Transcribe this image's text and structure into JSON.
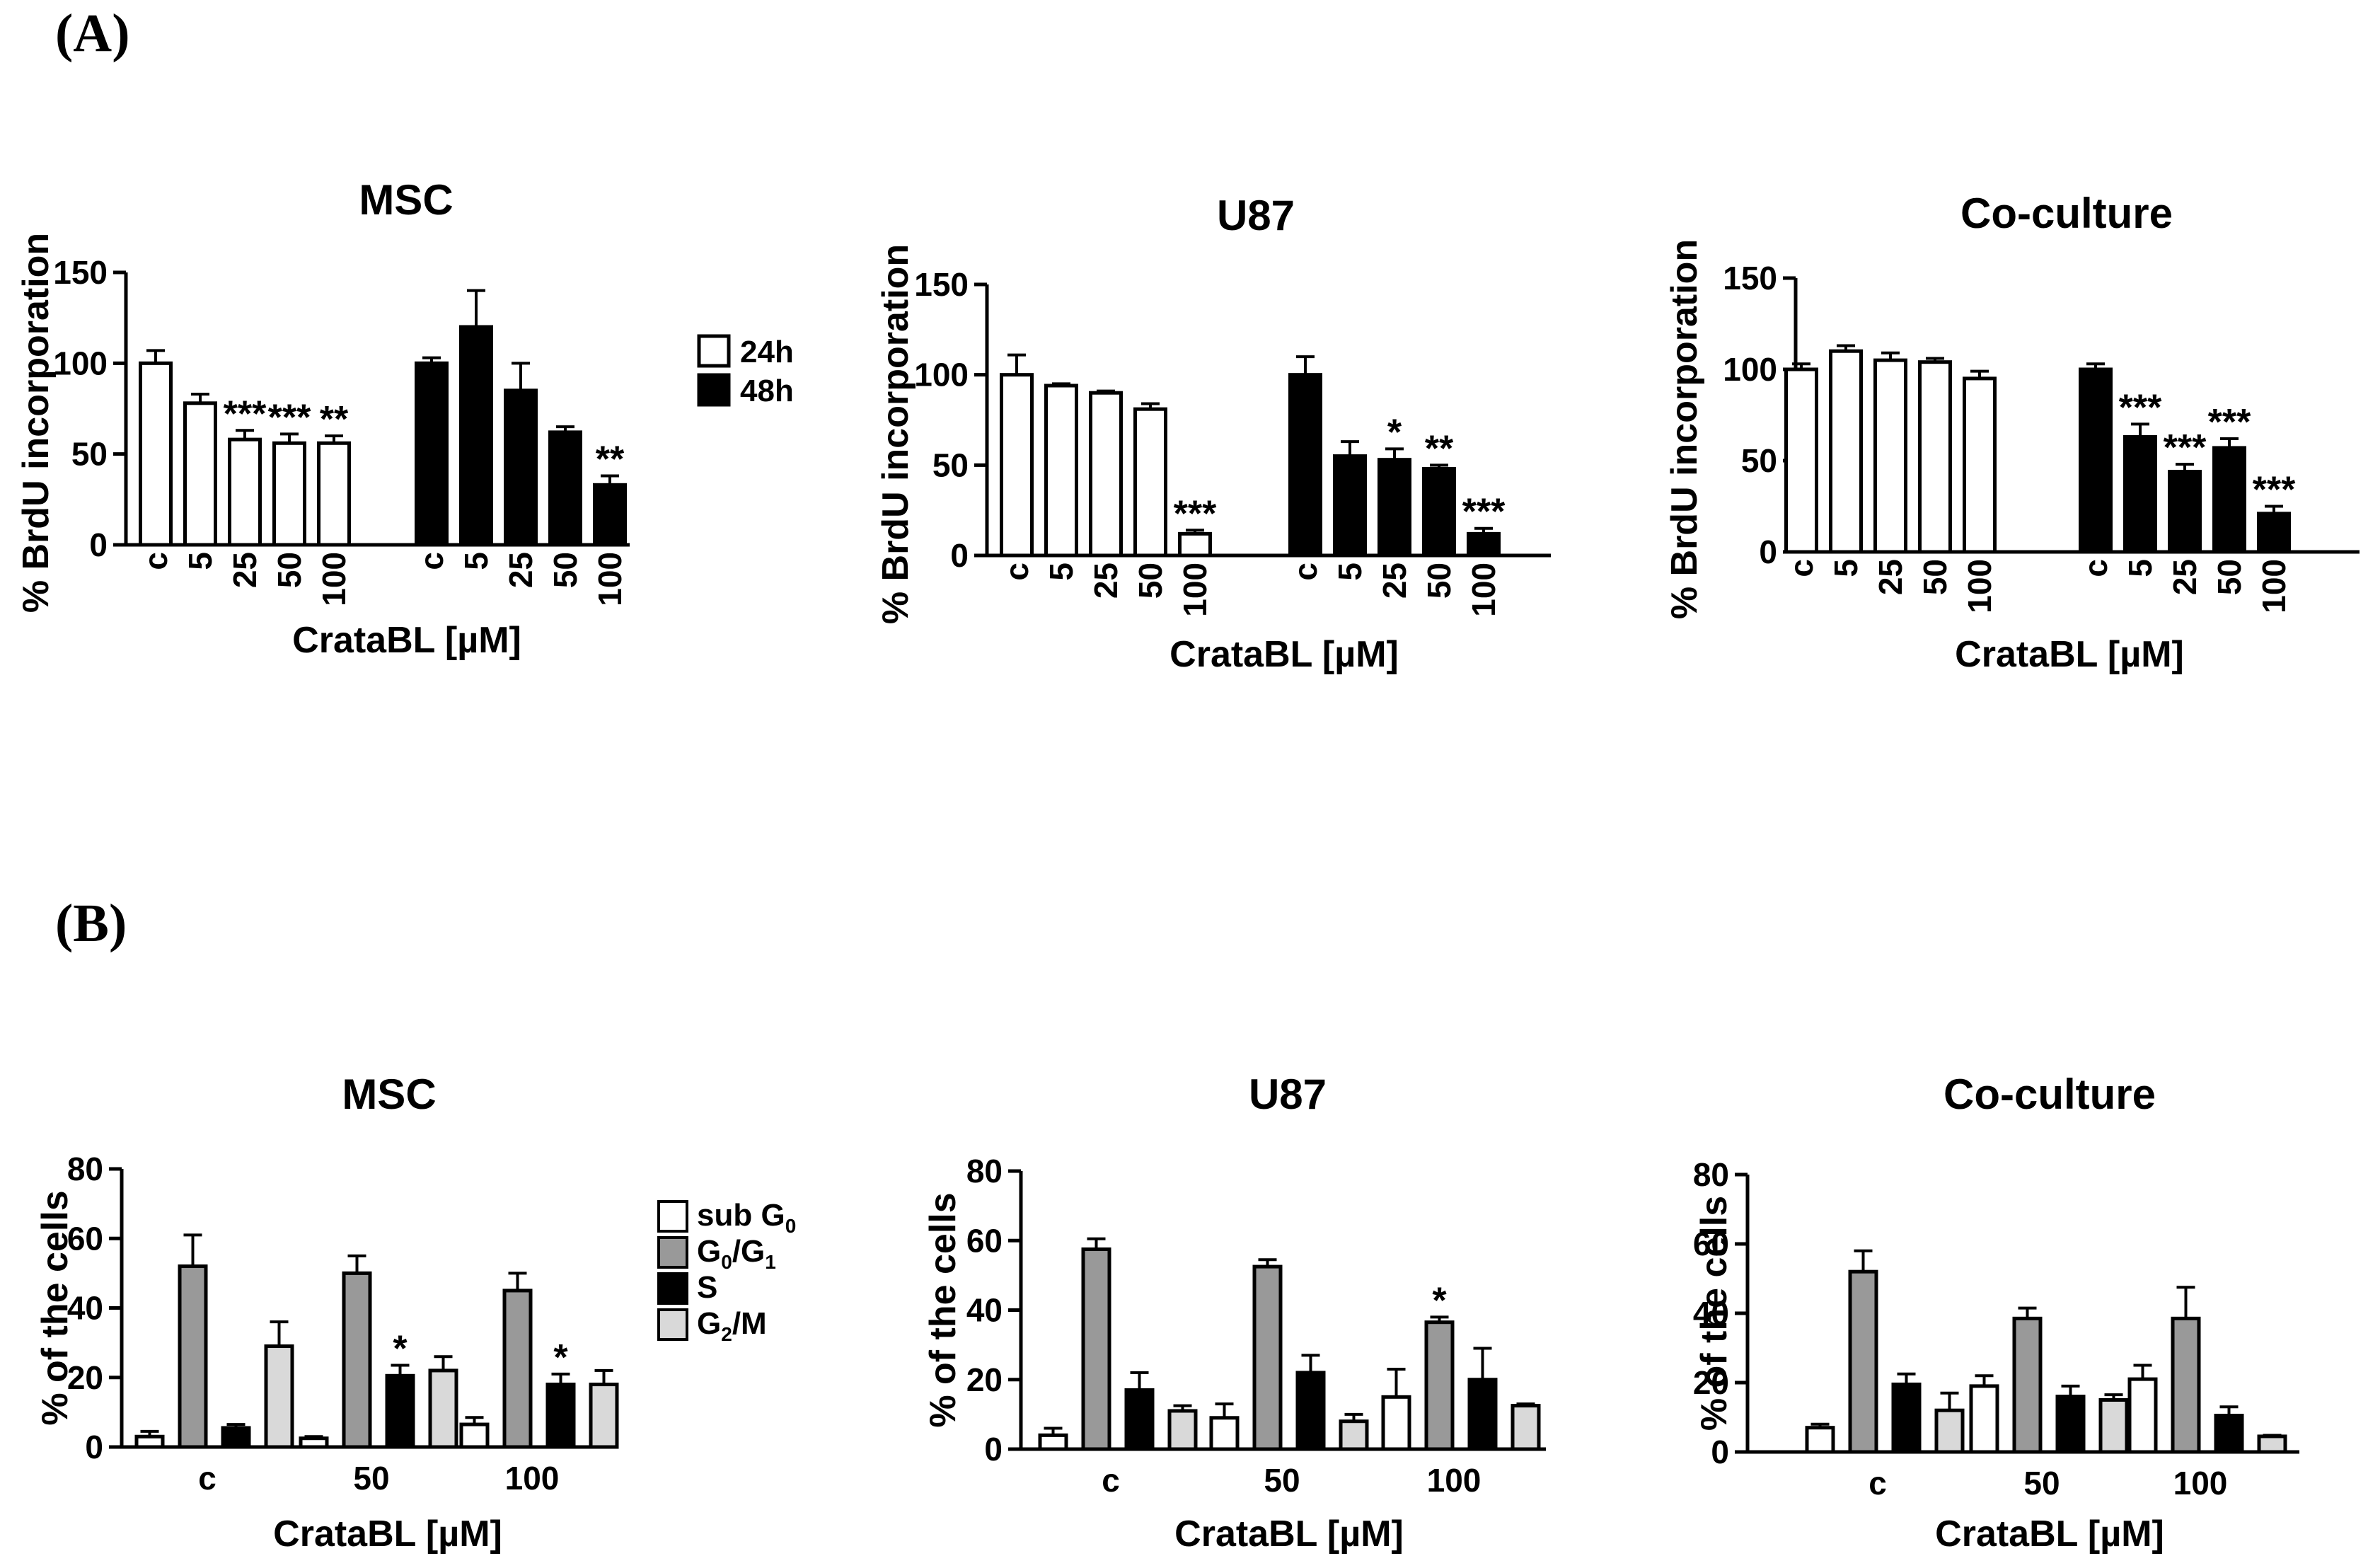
{
  "figure": {
    "panel_a_label": "(A)",
    "panel_b_label": "(B)"
  },
  "chart_data": [
    {
      "id": "a-msc",
      "panel": "A",
      "type": "bar",
      "title": "MSC",
      "xlabel": "CrataBL [µM]",
      "ylabel": "% BrdU incorporation",
      "ylim": [
        0,
        150
      ],
      "yticks": [
        0,
        50,
        100,
        150
      ],
      "categories": [
        "c",
        "5",
        "25",
        "50",
        "100"
      ],
      "series": [
        {
          "name": "24h",
          "fill": "#ffffff",
          "values": [
            100,
            78,
            58,
            56,
            56
          ],
          "errors": [
            7,
            5,
            5,
            5,
            4
          ],
          "stars": [
            "",
            "",
            "***",
            "***",
            "**"
          ]
        },
        {
          "name": "48h",
          "fill": "#000000",
          "values": [
            100,
            120,
            85,
            62,
            33
          ],
          "errors": [
            3,
            20,
            15,
            3,
            5
          ],
          "stars": [
            "",
            "",
            "",
            "",
            "**"
          ]
        }
      ],
      "legend": [
        {
          "label": "24h",
          "fill": "#ffffff"
        },
        {
          "label": "48h",
          "fill": "#000000"
        }
      ]
    },
    {
      "id": "a-u87",
      "panel": "A",
      "type": "bar",
      "title": "U87",
      "xlabel": "CrataBL [µM]",
      "ylabel": "% BrdU incorporation",
      "ylim": [
        0,
        150
      ],
      "yticks": [
        0,
        50,
        100,
        150
      ],
      "categories": [
        "c",
        "5",
        "25",
        "50",
        "100"
      ],
      "series": [
        {
          "name": "24h",
          "fill": "#ffffff",
          "values": [
            100,
            94,
            90,
            81,
            12
          ],
          "errors": [
            11,
            1,
            1,
            3,
            2
          ],
          "stars": [
            "",
            "",
            "",
            "",
            "***"
          ]
        },
        {
          "name": "48h",
          "fill": "#000000",
          "values": [
            100,
            55,
            53,
            48,
            12
          ],
          "errors": [
            10,
            8,
            6,
            2,
            3
          ],
          "stars": [
            "",
            "",
            "*",
            "**",
            "***"
          ]
        }
      ]
    },
    {
      "id": "a-coculture",
      "panel": "A",
      "type": "bar",
      "title": "Co-culture",
      "xlabel": "CrataBL [µM]",
      "ylabel": "% BrdU incorporation",
      "ylim": [
        0,
        150
      ],
      "yticks": [
        0,
        50,
        100,
        150
      ],
      "categories": [
        "c",
        "5",
        "25",
        "50",
        "100"
      ],
      "series": [
        {
          "name": "24h",
          "fill": "#ffffff",
          "values": [
            100,
            110,
            105,
            104,
            95
          ],
          "errors": [
            3,
            3,
            4,
            2,
            4
          ],
          "stars": [
            "",
            "",
            "",
            "",
            ""
          ]
        },
        {
          "name": "48h",
          "fill": "#000000",
          "values": [
            100,
            63,
            44,
            57,
            21
          ],
          "errors": [
            3,
            7,
            4,
            5,
            4
          ],
          "stars": [
            "",
            "***",
            "***",
            "***",
            "***"
          ]
        }
      ]
    },
    {
      "id": "b-msc",
      "panel": "B",
      "type": "bar",
      "title": "MSC",
      "xlabel": "CrataBL [µM]",
      "ylabel": "% of the cells",
      "ylim": [
        0,
        80
      ],
      "yticks": [
        0,
        20,
        40,
        60,
        80
      ],
      "categories": [
        "c",
        "50",
        "100"
      ],
      "series": [
        {
          "name": "sub G0",
          "fill": "#ffffff",
          "values": [
            3,
            2.5,
            6.5
          ],
          "errors": [
            1.5,
            0.5,
            2
          ],
          "stars": [
            "",
            "",
            ""
          ]
        },
        {
          "name": "G0/G1",
          "fill": "#999999",
          "values": [
            52,
            50,
            45
          ],
          "errors": [
            9,
            5,
            5
          ],
          "stars": [
            "",
            "",
            ""
          ]
        },
        {
          "name": "S",
          "fill": "#000000",
          "values": [
            5.5,
            20.5,
            18
          ],
          "errors": [
            1,
            3,
            3
          ],
          "stars": [
            "",
            "*",
            "*"
          ]
        },
        {
          "name": "G2/M",
          "fill": "#d9d9d9",
          "values": [
            29,
            22,
            18
          ],
          "errors": [
            7,
            4,
            4
          ],
          "stars": [
            "",
            "",
            ""
          ]
        }
      ],
      "legend": [
        {
          "main": "sub G",
          "sub": "0",
          "tail": "",
          "sub2": "",
          "fill": "#ffffff"
        },
        {
          "main": "G",
          "sub": "0",
          "tail": "/G",
          "sub2": "1",
          "fill": "#999999"
        },
        {
          "main": "S",
          "sub": "",
          "tail": "",
          "sub2": "",
          "fill": "#000000"
        },
        {
          "main": "G",
          "sub": "2",
          "tail": "/M",
          "sub2": "",
          "fill": "#d9d9d9"
        }
      ]
    },
    {
      "id": "b-u87",
      "panel": "B",
      "type": "bar",
      "title": "U87",
      "xlabel": "CrataBL [µM]",
      "ylabel": "% of the cells",
      "ylim": [
        0,
        80
      ],
      "yticks": [
        0,
        20,
        40,
        60,
        80
      ],
      "categories": [
        "c",
        "50",
        "100"
      ],
      "series": [
        {
          "name": "sub G0",
          "fill": "#ffffff",
          "values": [
            4,
            9,
            15
          ],
          "errors": [
            2,
            4,
            8
          ],
          "stars": [
            "",
            "",
            ""
          ]
        },
        {
          "name": "G0/G1",
          "fill": "#999999",
          "values": [
            57.5,
            52.5,
            36.5
          ],
          "errors": [
            3,
            2,
            1.5
          ],
          "stars": [
            "",
            "",
            "*"
          ]
        },
        {
          "name": "S",
          "fill": "#000000",
          "values": [
            17,
            22,
            20
          ],
          "errors": [
            5,
            5,
            9
          ],
          "stars": [
            "",
            "",
            ""
          ]
        },
        {
          "name": "G2/M",
          "fill": "#d9d9d9",
          "values": [
            11,
            8,
            12.5
          ],
          "errors": [
            1.5,
            2,
            0.5
          ],
          "stars": [
            "",
            "",
            ""
          ]
        }
      ]
    },
    {
      "id": "b-coculture",
      "panel": "B",
      "type": "bar",
      "title": "Co-culture",
      "xlabel": "CrataBL [µM]",
      "ylabel": "% of the cells",
      "ylim": [
        0,
        80
      ],
      "yticks": [
        0,
        20,
        40,
        60,
        80
      ],
      "categories": [
        "c",
        "50",
        "100"
      ],
      "series": [
        {
          "name": "sub G0",
          "fill": "#ffffff",
          "values": [
            7,
            19,
            21
          ],
          "errors": [
            1,
            3,
            4
          ],
          "stars": [
            "",
            "",
            ""
          ]
        },
        {
          "name": "G0/G1",
          "fill": "#999999",
          "values": [
            52,
            38.5,
            38.5
          ],
          "errors": [
            6,
            3,
            9
          ],
          "stars": [
            "",
            "",
            ""
          ]
        },
        {
          "name": "S",
          "fill": "#000000",
          "values": [
            19.5,
            16,
            10.5
          ],
          "errors": [
            3,
            3,
            2.5
          ],
          "stars": [
            "",
            "",
            ""
          ]
        },
        {
          "name": "G2/M",
          "fill": "#d9d9d9",
          "values": [
            12,
            15,
            4.5
          ],
          "errors": [
            5,
            1.5,
            0.3
          ],
          "stars": [
            "",
            "",
            ""
          ]
        }
      ]
    }
  ]
}
